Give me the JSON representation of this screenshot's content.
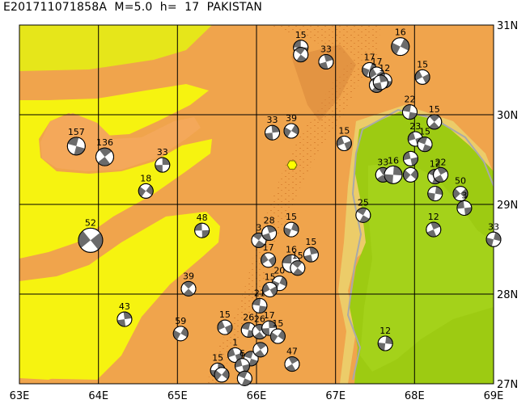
{
  "title": "E201711071858A  M=5.0  h=  17  PAKISTAN",
  "axes": {
    "lon_ticks": [
      "63E",
      "64E",
      "65E",
      "66E",
      "67E",
      "68E",
      "69E"
    ],
    "lat_ticks": [
      "31N",
      "30N",
      "29N",
      "28N",
      "27N"
    ]
  },
  "epicenter": {
    "lon": 66.45,
    "lat": 29.44
  },
  "mechanisms": [
    {
      "lon": 66.56,
      "lat": 30.75,
      "depth": "15"
    },
    {
      "lon": 66.56,
      "lat": 30.67,
      "depth": ""
    },
    {
      "lon": 66.88,
      "lat": 30.59,
      "depth": "33"
    },
    {
      "lon": 67.43,
      "lat": 30.5,
      "depth": "17"
    },
    {
      "lon": 67.52,
      "lat": 30.45,
      "depth": "17"
    },
    {
      "lon": 67.62,
      "lat": 30.38,
      "depth": "12"
    },
    {
      "lon": 67.52,
      "lat": 30.33,
      "depth": ""
    },
    {
      "lon": 67.57,
      "lat": 30.36,
      "depth": ""
    },
    {
      "lon": 67.82,
      "lat": 30.76,
      "depth": "16"
    },
    {
      "lon": 68.1,
      "lat": 30.42,
      "depth": "15"
    },
    {
      "lon": 67.94,
      "lat": 30.03,
      "depth": "22"
    },
    {
      "lon": 68.25,
      "lat": 29.92,
      "depth": "15"
    },
    {
      "lon": 66.2,
      "lat": 29.8,
      "depth": "33"
    },
    {
      "lon": 66.44,
      "lat": 29.82,
      "depth": "39"
    },
    {
      "lon": 67.11,
      "lat": 29.68,
      "depth": "15"
    },
    {
      "lon": 63.72,
      "lat": 29.65,
      "depth": "157"
    },
    {
      "lon": 64.08,
      "lat": 29.53,
      "depth": "136"
    },
    {
      "lon": 64.81,
      "lat": 29.44,
      "depth": "33"
    },
    {
      "lon": 64.6,
      "lat": 29.15,
      "depth": "18"
    },
    {
      "lon": 68.01,
      "lat": 29.73,
      "depth": "23"
    },
    {
      "lon": 68.13,
      "lat": 29.67,
      "depth": "15"
    },
    {
      "lon": 67.6,
      "lat": 29.33,
      "depth": "33"
    },
    {
      "lon": 67.73,
      "lat": 29.33,
      "depth": "16"
    },
    {
      "lon": 67.95,
      "lat": 29.33,
      "depth": ""
    },
    {
      "lon": 67.95,
      "lat": 29.51,
      "depth": ""
    },
    {
      "lon": 68.26,
      "lat": 29.31,
      "depth": "12"
    },
    {
      "lon": 68.33,
      "lat": 29.33,
      "depth": "22"
    },
    {
      "lon": 68.26,
      "lat": 29.12,
      "depth": ""
    },
    {
      "lon": 68.58,
      "lat": 29.12,
      "depth": "50"
    },
    {
      "lon": 68.63,
      "lat": 28.96,
      "depth": "3"
    },
    {
      "lon": 67.35,
      "lat": 28.88,
      "depth": "25"
    },
    {
      "lon": 68.24,
      "lat": 28.72,
      "depth": "12"
    },
    {
      "lon": 69.0,
      "lat": 28.61,
      "depth": "33"
    },
    {
      "lon": 63.9,
      "lat": 28.6,
      "depth": "52"
    },
    {
      "lon": 65.31,
      "lat": 28.71,
      "depth": "48"
    },
    {
      "lon": 66.03,
      "lat": 28.6,
      "depth": "3"
    },
    {
      "lon": 66.16,
      "lat": 28.68,
      "depth": "28"
    },
    {
      "lon": 66.44,
      "lat": 28.72,
      "depth": "15"
    },
    {
      "lon": 66.15,
      "lat": 28.38,
      "depth": "17"
    },
    {
      "lon": 66.44,
      "lat": 28.34,
      "depth": "16"
    },
    {
      "lon": 66.52,
      "lat": 28.29,
      "depth": "15"
    },
    {
      "lon": 66.69,
      "lat": 28.44,
      "depth": "15"
    },
    {
      "lon": 66.29,
      "lat": 28.12,
      "depth": "20"
    },
    {
      "lon": 66.17,
      "lat": 28.05,
      "depth": "15"
    },
    {
      "lon": 66.04,
      "lat": 27.87,
      "depth": "21"
    },
    {
      "lon": 65.14,
      "lat": 28.06,
      "depth": "39"
    },
    {
      "lon": 64.33,
      "lat": 27.72,
      "depth": "43"
    },
    {
      "lon": 65.04,
      "lat": 27.56,
      "depth": "59"
    },
    {
      "lon": 65.6,
      "lat": 27.63,
      "depth": "15"
    },
    {
      "lon": 65.9,
      "lat": 27.6,
      "depth": "26"
    },
    {
      "lon": 66.04,
      "lat": 27.58,
      "depth": "26"
    },
    {
      "lon": 66.16,
      "lat": 27.62,
      "depth": "17"
    },
    {
      "lon": 66.27,
      "lat": 27.53,
      "depth": "15"
    },
    {
      "lon": 65.73,
      "lat": 27.32,
      "depth": "1"
    },
    {
      "lon": 65.93,
      "lat": 27.28,
      "depth": ""
    },
    {
      "lon": 66.05,
      "lat": 27.38,
      "depth": ""
    },
    {
      "lon": 65.51,
      "lat": 27.15,
      "depth": "15"
    },
    {
      "lon": 65.56,
      "lat": 27.1,
      "depth": ""
    },
    {
      "lon": 65.82,
      "lat": 27.2,
      "depth": "6"
    },
    {
      "lon": 65.85,
      "lat": 27.06,
      "depth": ""
    },
    {
      "lon": 66.45,
      "lat": 27.22,
      "depth": "47"
    },
    {
      "lon": 67.63,
      "lat": 27.45,
      "depth": "12"
    }
  ]
}
